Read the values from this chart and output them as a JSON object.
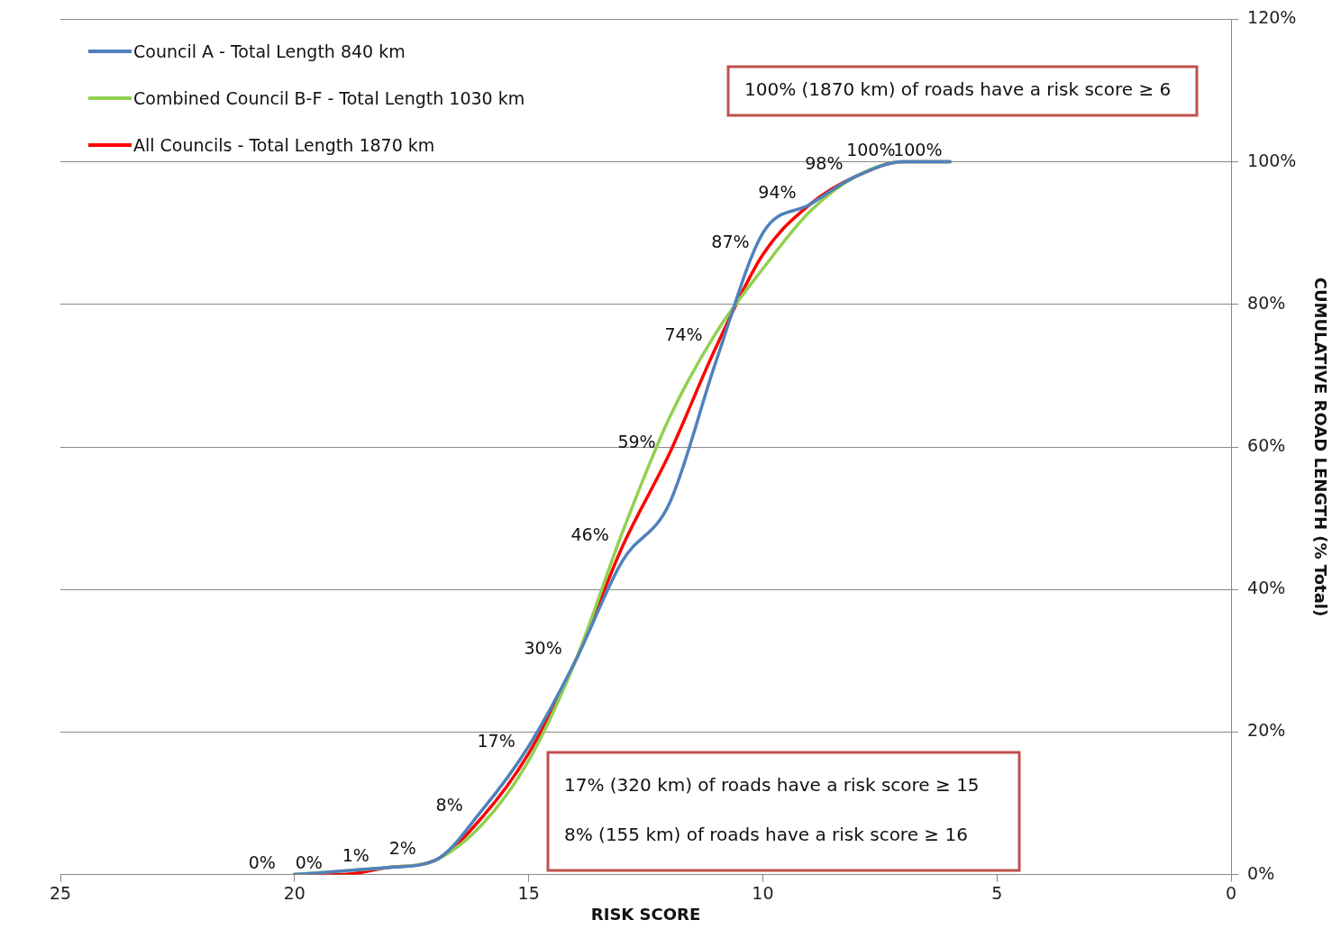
{
  "chart_data": {
    "type": "line",
    "xlabel": "RISK SCORE",
    "ylabel": "CUMULATIVE ROAD LENGTH (% Total)",
    "x": [
      20,
      19,
      18,
      17,
      16,
      15,
      14,
      13,
      12,
      11,
      10,
      9,
      8,
      7,
      6
    ],
    "xlim": [
      25,
      0
    ],
    "xticks": [
      25,
      20,
      15,
      10,
      5,
      0
    ],
    "ylim": [
      0,
      120
    ],
    "yticks": [
      {
        "value": 0,
        "label": "0%"
      },
      {
        "value": 20,
        "label": "20%"
      },
      {
        "value": 40,
        "label": "40%"
      },
      {
        "value": 60,
        "label": "60%"
      },
      {
        "value": 80,
        "label": "80%"
      },
      {
        "value": 100,
        "label": "100%"
      },
      {
        "value": 120,
        "label": "120%"
      }
    ],
    "grid": "y",
    "legend": "top left",
    "marker": "none",
    "line_style": "solid",
    "series": [
      {
        "name": "Council A - Total Length 840 km",
        "color": "#4f81bd",
        "values": [
          0,
          0.5,
          1,
          2,
          9,
          18,
          30,
          44,
          52,
          72,
          90,
          94,
          98,
          100,
          100
        ]
      },
      {
        "name": "Combined Council B-F - Total Length 1030 km",
        "color": "#92d050",
        "values": [
          0,
          0.5,
          1,
          2,
          7,
          16,
          30,
          48,
          64,
          76,
          85,
          93,
          98,
          100,
          100
        ]
      },
      {
        "name": "All Councils - Total Length 1870 km",
        "color": "#ff0000",
        "values": [
          0,
          0,
          1,
          2,
          8,
          17,
          30,
          46,
          59,
          74,
          87,
          94,
          98,
          100,
          100
        ],
        "value_labels": [
          "0%",
          "0%",
          "1%",
          "2%",
          "8%",
          "17%",
          "30%",
          "46%",
          "59%",
          "74%",
          "87%",
          "94%",
          "98%",
          "100%",
          "100%"
        ]
      }
    ],
    "annotations": [
      "100% (1870 km) of roads have a risk score ≥ 6",
      "17% (320 km) of roads have a risk score ≥ 15",
      "8% (155 km) of roads have a risk score ≥ 16"
    ]
  }
}
